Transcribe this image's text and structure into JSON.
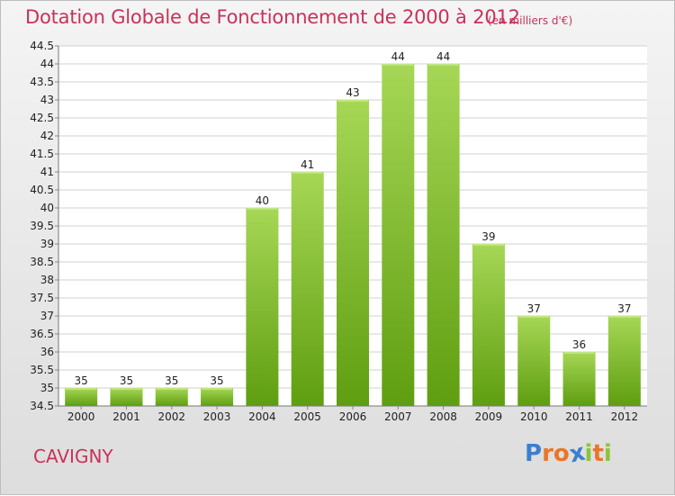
{
  "title": "Dotation Globale de Fonctionnement de 2000 à 2012",
  "subtitle": "(en milliers d'€)",
  "commune": "CAVIGNY",
  "brand": {
    "letters": [
      "P",
      "r",
      "o",
      "x",
      "i",
      "t",
      "i"
    ],
    "colors": [
      "#3a7fd0",
      "#e8762a",
      "#e8762a",
      "#3a7fd0",
      "#8cc43c",
      "#e8762a",
      "#8cc43c"
    ]
  },
  "colors": {
    "title": "#c8325a",
    "bar_top": "#a6d756",
    "bar_bottom": "#5f9e10",
    "bar_edge": "#c7ec8e"
  },
  "chart_data": {
    "type": "bar",
    "categories": [
      "2000",
      "2001",
      "2002",
      "2003",
      "2004",
      "2005",
      "2006",
      "2007",
      "2008",
      "2009",
      "2010",
      "2011",
      "2012"
    ],
    "values": [
      35,
      35,
      35,
      35,
      40,
      41,
      43,
      44,
      44,
      39,
      37,
      36,
      37
    ],
    "data_labels": [
      "35",
      "35",
      "35",
      "35",
      "40",
      "41",
      "43",
      "44",
      "44",
      "39",
      "37",
      "36",
      "37"
    ],
    "ylim": [
      34.5,
      44.5
    ],
    "yticks": [
      "34.5",
      "35",
      "35.5",
      "36",
      "36.5",
      "37",
      "37.5",
      "38",
      "38.5",
      "39",
      "39.5",
      "40",
      "40.5",
      "41",
      "41.5",
      "42",
      "42.5",
      "43",
      "43.5",
      "44",
      "44.5"
    ],
    "grid": true,
    "xlabel": "",
    "ylabel": ""
  }
}
